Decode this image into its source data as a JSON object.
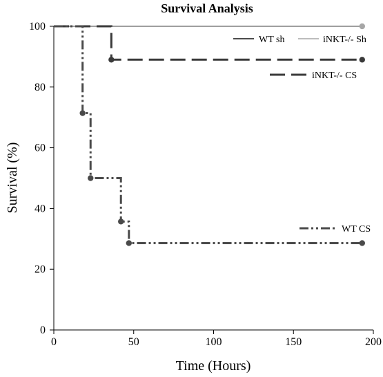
{
  "chart_data": {
    "type": "line",
    "title": "Survival Analysis",
    "xlabel": "Time (Hours)",
    "ylabel": "Survival (%)",
    "xlim": [
      0,
      200
    ],
    "ylim": [
      0,
      100
    ],
    "xticks": [
      "0",
      "50",
      "100",
      "150",
      "200"
    ],
    "yticks": [
      "0",
      "20",
      "40",
      "60",
      "80",
      "100"
    ],
    "xtick_values": [
      0,
      50,
      100,
      150,
      200
    ],
    "ytick_values": [
      0,
      20,
      40,
      60,
      80,
      100
    ],
    "grid": false,
    "series": [
      {
        "name": "WT sh",
        "color": "#111111",
        "dash": "solid",
        "steps": [
          [
            0,
            100
          ],
          [
            193,
            100
          ]
        ],
        "censored": [],
        "markers": []
      },
      {
        "name": "iNKT-/- Sh",
        "color": "#a6a6a6",
        "dash": "solid",
        "steps": [
          [
            0,
            100
          ],
          [
            193,
            100
          ]
        ],
        "censored": [
          [
            10,
            100
          ],
          [
            193,
            100
          ]
        ],
        "markers": [
          [
            193,
            100
          ]
        ]
      },
      {
        "name": "iNKT-/- CS",
        "color": "#3a3a3a",
        "dash": "long-dash",
        "steps": [
          [
            0,
            100
          ],
          [
            36,
            100
          ],
          [
            36,
            89
          ],
          [
            193,
            89
          ]
        ],
        "censored": [
          [
            36,
            89
          ],
          [
            193,
            89
          ]
        ],
        "markers": [
          [
            36,
            89
          ],
          [
            193,
            89
          ]
        ]
      },
      {
        "name": "WT CS",
        "color": "#4a4a4a",
        "dash": "dash-dot-dot",
        "steps": [
          [
            0,
            100
          ],
          [
            18,
            100
          ],
          [
            18,
            71.4
          ],
          [
            23,
            71.4
          ],
          [
            23,
            50
          ],
          [
            42,
            50
          ],
          [
            42,
            35.7
          ],
          [
            47,
            35.7
          ],
          [
            47,
            28.6
          ],
          [
            193,
            28.6
          ]
        ],
        "censored": [],
        "markers": [
          [
            18,
            71.4
          ],
          [
            23,
            50
          ],
          [
            42,
            35.7
          ],
          [
            47,
            28.6
          ],
          [
            193,
            28.6
          ]
        ]
      }
    ],
    "legend": [
      {
        "label": "WT sh",
        "series": 0,
        "placement": "top-right"
      },
      {
        "label": "iNKT-/- Sh",
        "series": 1,
        "placement": "top-right"
      },
      {
        "label": "iNKT-/- CS",
        "series": 2,
        "placement": "upper-right"
      },
      {
        "label": "WT CS",
        "series": 3,
        "placement": "lower-right"
      }
    ]
  }
}
